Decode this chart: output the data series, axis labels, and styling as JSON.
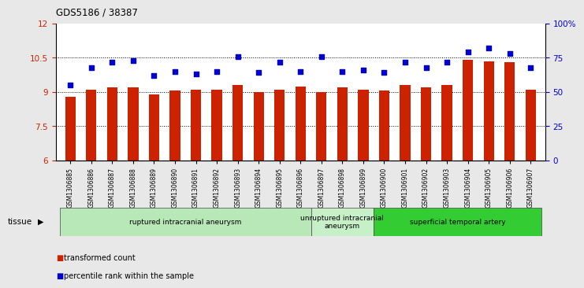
{
  "title": "GDS5186 / 38387",
  "samples": [
    "GSM1306885",
    "GSM1306886",
    "GSM1306887",
    "GSM1306888",
    "GSM1306889",
    "GSM1306890",
    "GSM1306891",
    "GSM1306892",
    "GSM1306893",
    "GSM1306894",
    "GSM1306895",
    "GSM1306896",
    "GSM1306897",
    "GSM1306898",
    "GSM1306899",
    "GSM1306900",
    "GSM1306901",
    "GSM1306902",
    "GSM1306903",
    "GSM1306904",
    "GSM1306905",
    "GSM1306906",
    "GSM1306907"
  ],
  "transformed_count": [
    8.8,
    9.1,
    9.2,
    9.2,
    8.9,
    9.05,
    9.1,
    9.1,
    9.3,
    9.0,
    9.1,
    9.25,
    9.0,
    9.2,
    9.1,
    9.05,
    9.3,
    9.2,
    9.3,
    10.4,
    10.35,
    10.3,
    9.1
  ],
  "percentile_rank": [
    55,
    68,
    72,
    73,
    62,
    65,
    63,
    65,
    76,
    64,
    72,
    65,
    76,
    65,
    66,
    64,
    72,
    68,
    72,
    79,
    82,
    78,
    68
  ],
  "ylim_left": [
    6,
    12
  ],
  "ylim_right": [
    0,
    100
  ],
  "yticks_left": [
    6,
    7.5,
    9,
    10.5,
    12
  ],
  "yticks_right": [
    0,
    25,
    50,
    75,
    100
  ],
  "bar_color": "#cc2200",
  "dot_color": "#0000cc",
  "bg_color": "#e8e8e8",
  "plot_bg_color": "#ffffff",
  "groups": [
    {
      "label": "ruptured intracranial aneurysm",
      "start": 0,
      "end": 12,
      "color": "#b8e8b8"
    },
    {
      "label": "unruptured intracranial\naneurysm",
      "start": 12,
      "end": 15,
      "color": "#c8f0c8"
    },
    {
      "label": "superficial temporal artery",
      "start": 15,
      "end": 23,
      "color": "#33cc33"
    }
  ],
  "tissue_label": "tissue",
  "ytick_labels_left": [
    "6",
    "7.5",
    "9",
    "10.5",
    "12"
  ],
  "ytick_labels_right": [
    "0",
    "25",
    "50",
    "75",
    "100%"
  ]
}
